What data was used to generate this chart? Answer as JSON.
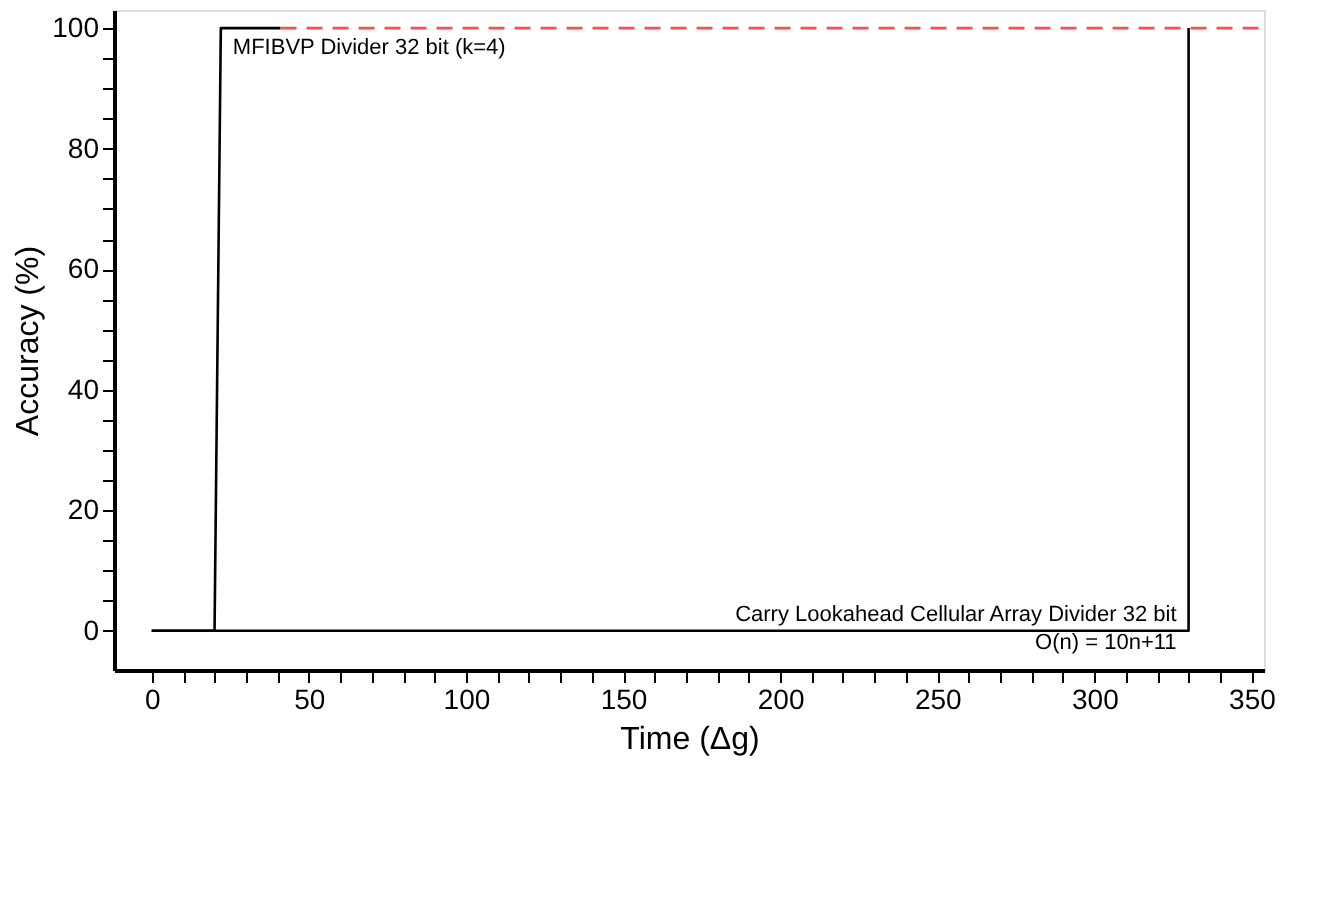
{
  "chart_data": {
    "type": "line",
    "xlabel": "Time (Δg)",
    "ylabel": "Accuracy (%)",
    "series": [
      {
        "color": "#000000",
        "x": [
          0,
          20,
          22,
          41
        ],
        "values": [
          0,
          0,
          100,
          100
        ]
      },
      {
        "color": "#ff4d4d",
        "line_style": "dashed",
        "x": [
          41,
          354
        ],
        "values": [
          100,
          100
        ]
      },
      {
        "color": "#000000",
        "x": [
          0,
          330,
          330
        ],
        "values": [
          0,
          0,
          100
        ]
      }
    ],
    "xlim": [
      -12,
      354
    ],
    "ylim": [
      -6.5,
      103
    ],
    "xticks": [
      0,
      {
        "value": 10,
        "label": null
      },
      {
        "value": 20,
        "label": null
      },
      {
        "value": 30,
        "label": null
      },
      {
        "value": 40,
        "label": null
      },
      50,
      {
        "value": 60,
        "label": null
      },
      {
        "value": 70,
        "label": null
      },
      {
        "value": 80,
        "label": null
      },
      {
        "value": 90,
        "label": null
      },
      100,
      {
        "value": 110,
        "label": null
      },
      {
        "value": 120,
        "label": null
      },
      {
        "value": 130,
        "label": null
      },
      {
        "value": 140,
        "label": null
      },
      150,
      {
        "value": 160,
        "label": null
      },
      {
        "value": 170,
        "label": null
      },
      {
        "value": 180,
        "label": null
      },
      {
        "value": 190,
        "label": null
      },
      200,
      {
        "value": 210,
        "label": null
      },
      {
        "value": 220,
        "label": null
      },
      {
        "value": 230,
        "label": null
      },
      {
        "value": 240,
        "label": null
      },
      250,
      {
        "value": 260,
        "label": null
      },
      {
        "value": 270,
        "label": null
      },
      {
        "value": 280,
        "label": null
      },
      {
        "value": 290,
        "label": null
      },
      300,
      {
        "value": 310,
        "label": null
      },
      {
        "value": 320,
        "label": null
      },
      {
        "value": 330,
        "label": null
      },
      {
        "value": 340,
        "label": null
      },
      350
    ],
    "yticks": [
      0,
      {
        "value": 5,
        "label": null
      },
      {
        "value": 10,
        "label": null
      },
      {
        "value": 15,
        "label": null
      },
      20,
      {
        "value": 25,
        "label": null
      },
      {
        "value": 30,
        "label": null
      },
      {
        "value": 35,
        "label": null
      },
      40,
      {
        "value": 45,
        "label": null
      },
      {
        "value": 50,
        "label": null
      },
      {
        "value": 55,
        "label": null
      },
      60,
      {
        "value": 65,
        "label": null
      },
      {
        "value": 70,
        "label": null
      },
      {
        "value": 75,
        "label": null
      },
      80,
      {
        "value": 85,
        "label": null
      },
      {
        "value": 90,
        "label": null
      },
      {
        "value": 95,
        "label": null
      },
      100
    ],
    "annotations": [
      {
        "text": "MFIBVP Divider 32 bit (k=4)",
        "x": 22,
        "y": 100
      },
      {
        "text": "Carry Lookahead Cellular Array Divider 32 bit\nO(n) = 10n+11",
        "x": 330,
        "y": 0
      }
    ],
    "grid": false
  }
}
